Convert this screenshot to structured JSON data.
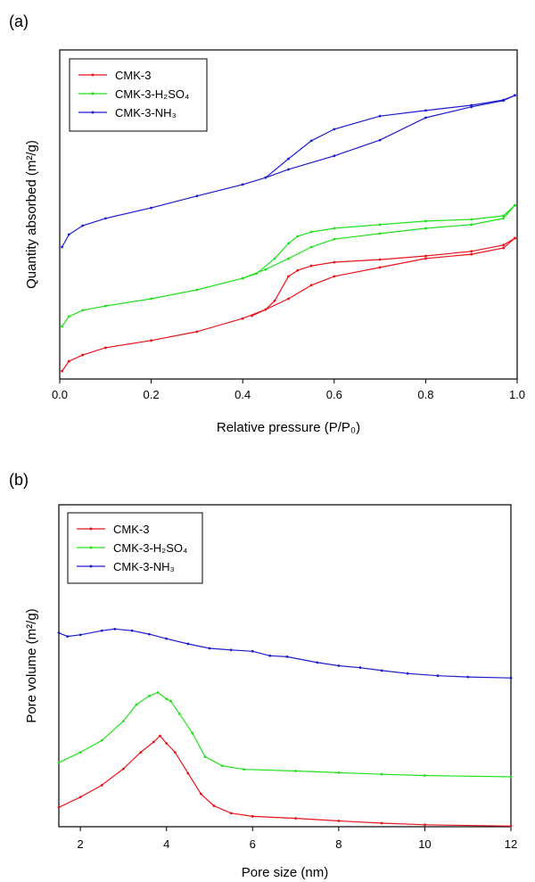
{
  "chart_data": [
    {
      "panel_label": "(a)",
      "type": "line",
      "title": "",
      "xlabel": "Relative pressure (P/P₀)",
      "ylabel": "Quantity absorbed (m²/g)",
      "xlim": [
        0,
        1.0
      ],
      "ylim": [
        0,
        100
      ],
      "y_units_note": "relative (no y tick labels)",
      "xticks": [
        "0.0",
        "0.2",
        "0.4",
        "0.6",
        "0.8",
        "1.0"
      ],
      "xtick_values": [
        0,
        0.2,
        0.4,
        0.6,
        0.8,
        1.0
      ],
      "grid": false,
      "legend_position": "top-left",
      "series": [
        {
          "name": "CMK-3",
          "color": "#e8141b",
          "adsorption": {
            "x": [
              0.005,
              0.02,
              0.05,
              0.1,
              0.2,
              0.3,
              0.4,
              0.45,
              0.5,
              0.55,
              0.6,
              0.7,
              0.8,
              0.9,
              0.97,
              0.995
            ],
            "y": [
              2.4,
              5.4,
              7.3,
              9.5,
              11.7,
              14.4,
              18.4,
              21.1,
              24.4,
              28.5,
              31.2,
              33.9,
              36.6,
              37.9,
              39.8,
              42.8
            ]
          },
          "desorption": {
            "x": [
              0.995,
              0.97,
              0.9,
              0.8,
              0.7,
              0.6,
              0.55,
              0.52,
              0.5,
              0.47,
              0.45,
              0.42
            ],
            "y": [
              42.8,
              40.7,
              38.8,
              37.4,
              36.3,
              35.5,
              34.4,
              33.0,
              31.2,
              23.8,
              21.1,
              19.2
            ]
          }
        },
        {
          "name": "CMK-3-H₂SO₄",
          "color": "#22e01e",
          "adsorption": {
            "x": [
              0.005,
              0.02,
              0.05,
              0.1,
              0.2,
              0.3,
              0.4,
              0.45,
              0.5,
              0.55,
              0.6,
              0.7,
              0.8,
              0.9,
              0.97,
              0.995
            ],
            "y": [
              16.0,
              19.0,
              20.9,
              22.2,
              24.4,
              27.1,
              30.6,
              33.3,
              36.6,
              40.1,
              42.5,
              44.2,
              45.8,
              46.9,
              48.8,
              52.8
            ]
          },
          "desorption": {
            "x": [
              0.995,
              0.97,
              0.9,
              0.8,
              0.7,
              0.6,
              0.55,
              0.52,
              0.5,
              0.47,
              0.43,
              0.4
            ],
            "y": [
              52.8,
              49.6,
              48.5,
              48.0,
              46.9,
              45.8,
              44.7,
              43.4,
              41.2,
              36.6,
              32.0,
              30.6
            ]
          }
        },
        {
          "name": "CMK-3-NH₃",
          "color": "#1c1ccc",
          "adsorption": {
            "x": [
              0.005,
              0.02,
              0.05,
              0.1,
              0.2,
              0.3,
              0.4,
              0.45,
              0.5,
              0.6,
              0.7,
              0.8,
              0.9,
              0.97,
              0.995
            ],
            "y": [
              40.1,
              43.9,
              46.6,
              48.8,
              52.0,
              55.6,
              59.1,
              61.2,
              63.7,
              67.8,
              72.6,
              79.4,
              82.7,
              84.6,
              86.2
            ]
          },
          "desorption": {
            "x": [
              0.995,
              0.97,
              0.9,
              0.8,
              0.7,
              0.6,
              0.55,
              0.5,
              0.45
            ],
            "y": [
              86.2,
              84.8,
              83.2,
              81.6,
              79.9,
              75.9,
              72.4,
              66.9,
              61.2
            ]
          }
        }
      ]
    },
    {
      "panel_label": "(b)",
      "type": "line",
      "title": "",
      "xlabel": "Pore size (nm)",
      "ylabel": "Pore volume (m²/g)",
      "xlim": [
        1.5,
        12
      ],
      "ylim": [
        0,
        100
      ],
      "y_units_note": "relative (no y tick labels)",
      "xticks": [
        "2",
        "4",
        "6",
        "8",
        "10",
        "12"
      ],
      "xtick_values": [
        2,
        4,
        6,
        8,
        10,
        12
      ],
      "grid": false,
      "legend_position": "top-left",
      "series": [
        {
          "name": "CMK-3",
          "color": "#e8141b",
          "x": [
            1.5,
            2,
            2.5,
            3,
            3.4,
            3.7,
            3.85,
            4.0,
            4.2,
            4.5,
            4.8,
            5.1,
            5.5,
            6,
            7,
            8,
            9,
            10,
            12
          ],
          "y": [
            6.0,
            9.2,
            12.9,
            18.0,
            23.1,
            26.3,
            28.2,
            25.9,
            23.1,
            16.6,
            10.2,
            6.5,
            4.2,
            3.2,
            2.6,
            1.8,
            1.1,
            0.6,
            0.2
          ]
        },
        {
          "name": "CMK-3-H₂SO₄",
          "color": "#22e01e",
          "x": [
            1.5,
            2,
            2.5,
            3,
            3.3,
            3.6,
            3.8,
            4.0,
            4.1,
            4.3,
            4.6,
            4.9,
            5.3,
            5.8,
            7,
            8,
            9,
            10,
            12
          ],
          "y": [
            19.9,
            23.1,
            26.8,
            32.8,
            37.9,
            40.6,
            41.7,
            39.7,
            39.0,
            35.1,
            29.1,
            21.7,
            18.9,
            17.8,
            17.3,
            16.8,
            16.3,
            15.9,
            15.5
          ]
        },
        {
          "name": "CMK-3-NH₃",
          "color": "#1c1ccc",
          "x": [
            1.5,
            1.7,
            2,
            2.5,
            2.8,
            3.2,
            3.6,
            4,
            4.5,
            5,
            5.5,
            6,
            6.4,
            6.8,
            7.5,
            8,
            8.5,
            9,
            9.6,
            10.3,
            11,
            12
          ],
          "y": [
            60.2,
            59.1,
            59.6,
            60.9,
            61.4,
            60.9,
            59.8,
            58.4,
            56.8,
            55.4,
            54.9,
            54.5,
            53.1,
            52.8,
            51.0,
            50.0,
            49.4,
            48.5,
            47.6,
            46.9,
            46.5,
            46.2
          ]
        }
      ]
    }
  ]
}
